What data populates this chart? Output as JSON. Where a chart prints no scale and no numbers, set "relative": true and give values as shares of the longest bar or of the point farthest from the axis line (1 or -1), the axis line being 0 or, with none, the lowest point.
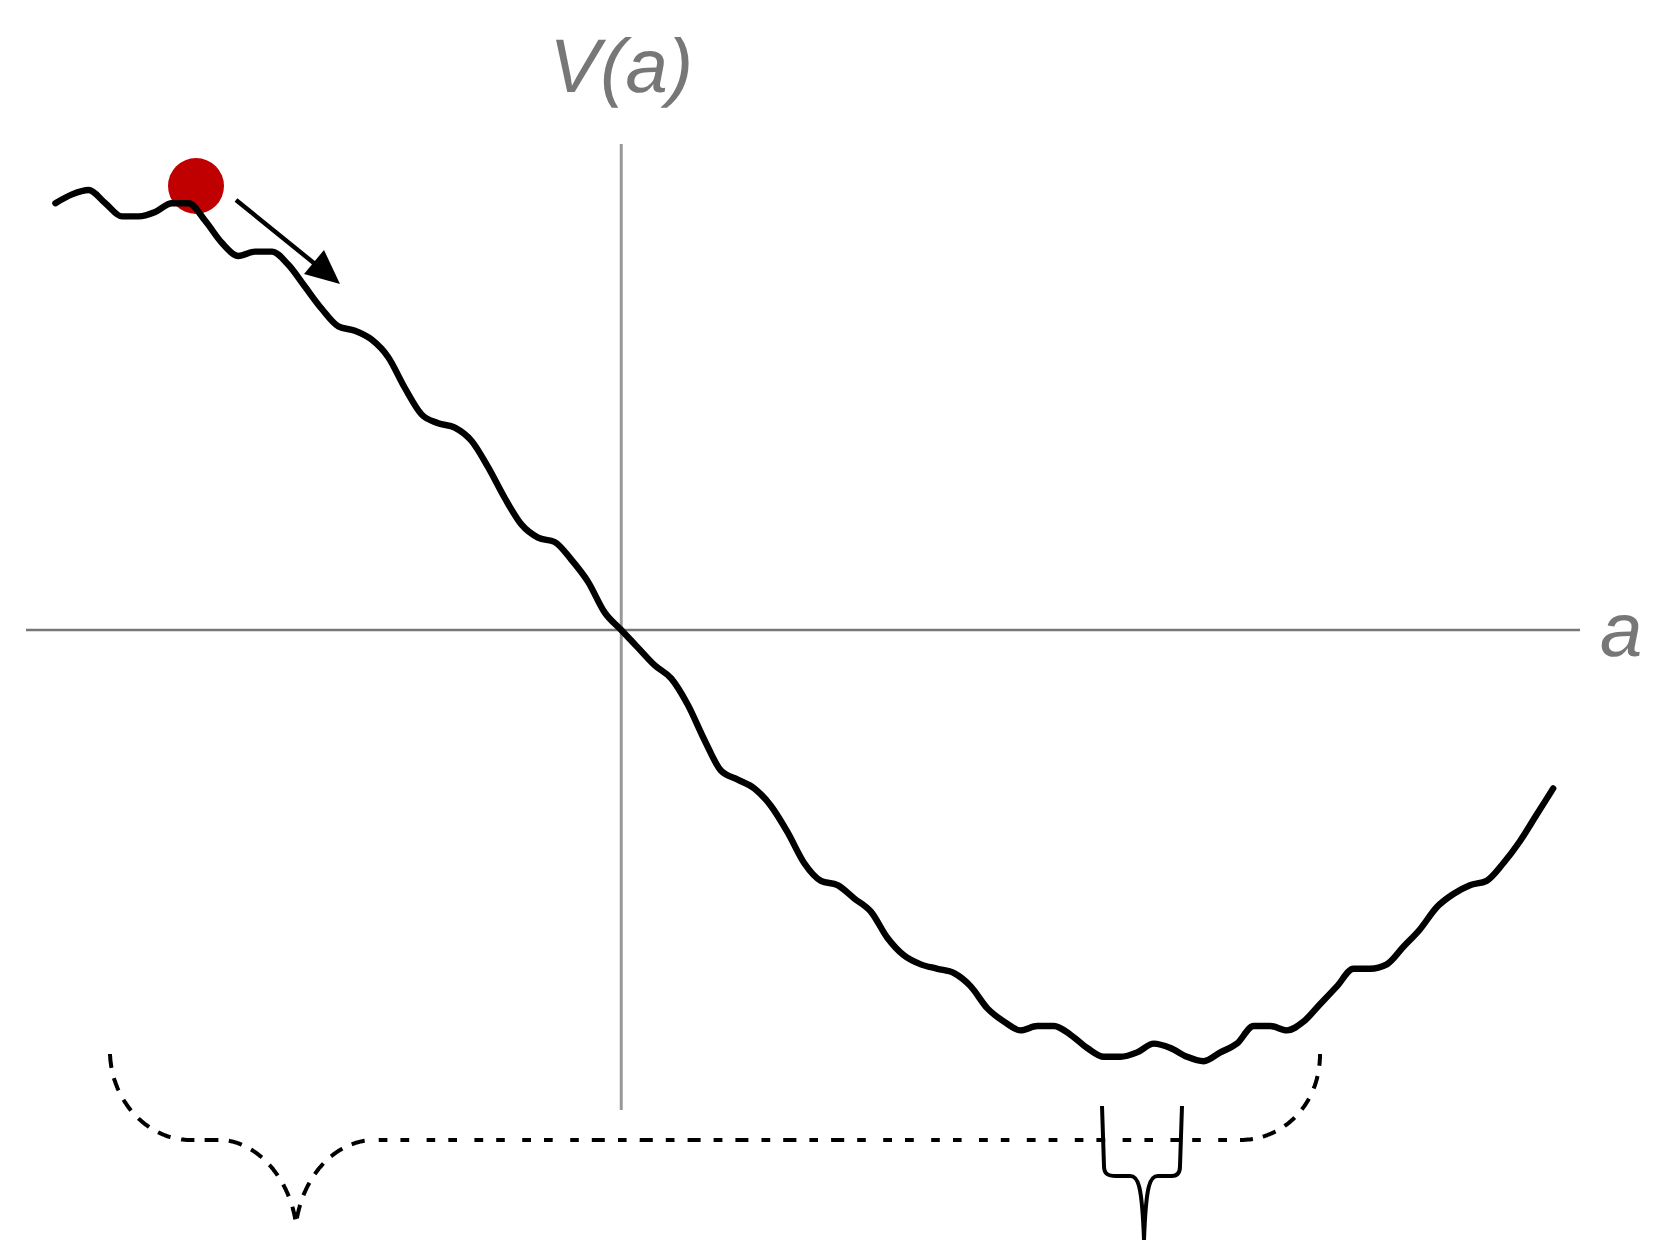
{
  "chart_data": {
    "type": "line",
    "ylabel": "V(a)",
    "xlabel": "a",
    "relative": true,
    "color": "#000000",
    "categories": [
      null,
      null,
      null,
      null,
      null,
      null,
      null,
      null,
      null,
      null,
      null,
      null,
      null,
      null,
      null,
      null,
      null,
      null,
      null,
      null,
      null,
      null,
      null,
      null,
      null,
      null,
      null,
      null,
      null,
      null,
      null,
      null,
      null,
      null,
      null,
      null,
      null,
      null,
      null,
      null,
      null,
      null,
      null,
      null,
      null,
      null,
      null,
      null,
      null,
      null,
      null,
      null,
      null,
      null,
      null,
      null,
      null,
      null,
      null,
      null,
      null,
      null,
      null,
      null,
      null,
      null,
      null,
      null,
      null,
      null,
      null,
      null,
      null,
      null,
      null,
      null,
      null,
      null,
      null,
      null,
      null,
      null,
      null,
      null,
      null,
      null,
      null,
      null,
      null,
      null,
      null
    ],
    "values": [
      0.97,
      0.99,
      1.0,
      0.97,
      0.94,
      0.94,
      0.95,
      0.97,
      0.97,
      0.93,
      0.88,
      0.85,
      0.86,
      0.86,
      0.83,
      0.78,
      0.73,
      0.69,
      0.68,
      0.66,
      0.62,
      0.55,
      0.49,
      0.47,
      0.46,
      0.43,
      0.37,
      0.3,
      0.24,
      0.21,
      0.2,
      0.16,
      0.11,
      0.04,
      0.0,
      -0.04,
      -0.08,
      -0.11,
      -0.17,
      -0.25,
      -0.32,
      -0.34,
      -0.36,
      -0.4,
      -0.46,
      -0.53,
      -0.57,
      -0.58,
      -0.61,
      -0.64,
      -0.7,
      -0.74,
      -0.76,
      -0.77,
      -0.78,
      -0.81,
      -0.86,
      -0.89,
      -0.91,
      -0.9,
      -0.9,
      -0.92,
      -0.95,
      -0.97,
      -0.97,
      -0.96,
      -0.94,
      -0.95,
      -0.97,
      -0.98,
      -0.96,
      -0.94,
      -0.9,
      -0.9,
      -0.91,
      -0.89,
      -0.85,
      -0.81,
      -0.77,
      -0.77,
      -0.76,
      -0.72,
      -0.68,
      -0.63,
      -0.6,
      -0.58,
      -0.57,
      -0.53,
      -0.48,
      -0.42,
      -0.36
    ]
  }
}
